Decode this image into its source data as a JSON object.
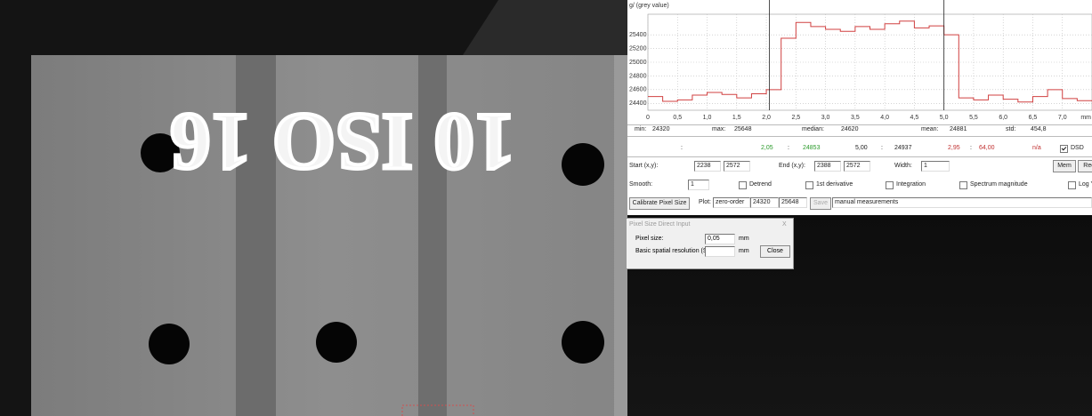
{
  "image": {
    "plate_text": "10 ISO 16"
  },
  "chart_data": {
    "type": "line",
    "step": true,
    "y_label": "g/ (grey value)",
    "x_unit": "mm",
    "x": [
      0,
      0.25,
      0.5,
      0.75,
      1.0,
      1.25,
      1.5,
      1.75,
      2.0,
      2.25,
      2.5,
      2.75,
      3.0,
      3.25,
      3.5,
      3.75,
      4.0,
      4.25,
      4.5,
      4.75,
      5.0,
      5.25,
      5.5,
      5.75,
      6.0,
      6.25,
      6.5,
      6.75,
      7.0,
      7.25,
      7.5
    ],
    "series": [
      {
        "name": "profile",
        "color": "#d04040",
        "values": [
          24500,
          24430,
          24450,
          24520,
          24560,
          24530,
          24480,
          24540,
          24600,
          25350,
          25580,
          25520,
          25480,
          25450,
          25520,
          25480,
          25560,
          25600,
          25500,
          25530,
          25400,
          24480,
          24450,
          24520,
          24460,
          24420,
          24500,
          24600,
          24470,
          24440,
          24430
        ]
      }
    ],
    "cursors": [
      {
        "value": 2.05,
        "label": "2,05"
      },
      {
        "value": 5.0,
        "label": "5,00"
      }
    ],
    "xlim": [
      0,
      7.5
    ],
    "ylim": [
      24300,
      25700
    ],
    "xticks": [
      0,
      {
        "value": 0.5,
        "label": "0,5"
      },
      {
        "value": 1.0,
        "label": "1,0"
      },
      {
        "value": 1.5,
        "label": "1,5"
      },
      {
        "value": 2.0,
        "label": "2,0"
      },
      {
        "value": 2.5,
        "label": "2,5"
      },
      {
        "value": 3.0,
        "label": "3,0"
      },
      {
        "value": 3.5,
        "label": "3,5"
      },
      {
        "value": 4.0,
        "label": "4,0"
      },
      {
        "value": 4.5,
        "label": "4,5"
      },
      {
        "value": 5.0,
        "label": "5,0"
      },
      {
        "value": 5.5,
        "label": "5,5"
      },
      {
        "value": 6.0,
        "label": "6,0"
      },
      {
        "value": 6.5,
        "label": "6,5"
      },
      {
        "value": 7.0,
        "label": "7,0"
      }
    ],
    "yticks": [
      24400,
      24600,
      24800,
      25000,
      25200,
      25400
    ],
    "grid": true
  },
  "profile_window": {
    "stats": [
      "min:",
      "24320",
      "max:",
      "25648",
      "median:",
      "24620",
      "mean:",
      "24881",
      "std:",
      "454,8"
    ],
    "cursor_row": [
      ":",
      ":",
      "24853",
      ":",
      "24937",
      "2,95",
      ":",
      "64,00",
      "n/a"
    ],
    "dsd": "DSD",
    "start_label": "Start (x,y):",
    "start_x": "2238",
    "start_y": "2572",
    "end_label": "End (x,y):",
    "end_x": "2388",
    "end_y": "2572",
    "width_label": "Width:",
    "width": "1",
    "mem": "Mem",
    "recall": "Recall",
    "smooth_label": "Smooth:",
    "smooth": "1",
    "options": [
      "Detrend",
      "1st derivative",
      "Integration",
      "Spectrum magnitude",
      "Log Y"
    ],
    "calibrate": "Calibrate Pixel Size",
    "plot_label": "Plot:",
    "plot_mode": "zero-order",
    "plot_min": "24320",
    "plot_max": "25648",
    "save": "Save",
    "measurement_set": "manual measurements"
  },
  "dialog": {
    "title": "Pixel Size Direct Input",
    "close_icon": "X",
    "pixel_size_label": "Pixel size:",
    "pixel_size": "0,05",
    "unit": "mm",
    "srb_label": "Basic spatial resolution (SRb):",
    "close": "Close"
  }
}
